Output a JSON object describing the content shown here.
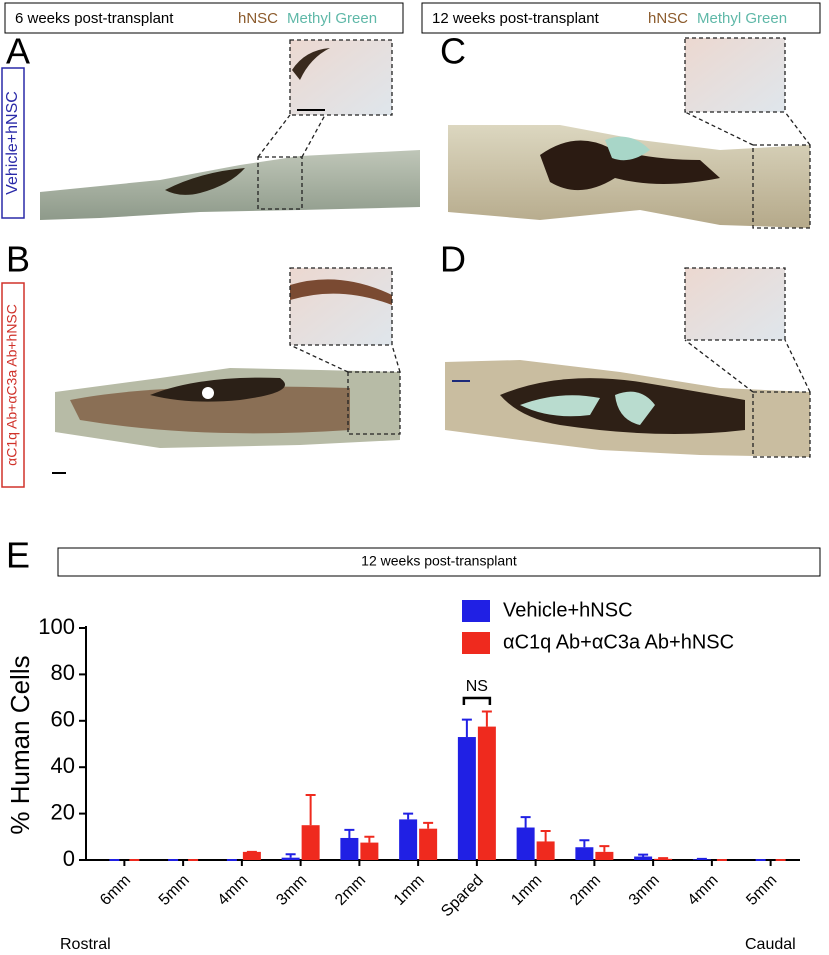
{
  "header_left": {
    "text": "6 weeks post-transplant",
    "stain1": "hNSC",
    "stain2": "Methyl Green"
  },
  "header_right": {
    "text": "12 weeks post-transplant",
    "stain1": "hNSC",
    "stain2": "Methyl Green"
  },
  "panel_labels": [
    "A",
    "B",
    "C",
    "D",
    "E"
  ],
  "row_labels": [
    "Vehicle+hNSC",
    "αC1q Ab+αC3a Ab+hNSC"
  ],
  "chart_data": {
    "type": "bar",
    "title": "12 weeks post-transplant",
    "y_label": "% Human Cells",
    "annotation": "NS",
    "x_label_left": "Rostral",
    "x_label_right": "Caudal",
    "categories": [
      "6mm",
      "5mm",
      "4mm",
      "3mm",
      "2mm",
      "1mm",
      "Spared",
      "1mm",
      "2mm",
      "3mm",
      "4mm",
      "5mm"
    ],
    "series": [
      {
        "name": "Vehicle+hNSC",
        "color": "#2020e4",
        "values": [
          0,
          0,
          0,
          1,
          9.5,
          17.5,
          53,
          14,
          5.5,
          1.5,
          0.3,
          0
        ],
        "errors": [
          0,
          0,
          0,
          1.5,
          3.5,
          2.5,
          7.5,
          4.5,
          3,
          0.8,
          0.2,
          0
        ]
      },
      {
        "name": "αC1q Ab+αC3a Ab+hNSC",
        "color": "#ef2a1e",
        "values": [
          0,
          0,
          3.5,
          15,
          7.5,
          13.5,
          57.5,
          8,
          3.5,
          0.5,
          0,
          0
        ],
        "errors": [
          0,
          0,
          0,
          13,
          2.5,
          2.5,
          6.5,
          4.5,
          2.5,
          0.3,
          0,
          0
        ]
      }
    ],
    "ylim": [
      0,
      100
    ],
    "yticks": [
      0,
      20,
      40,
      60,
      80,
      100
    ]
  }
}
